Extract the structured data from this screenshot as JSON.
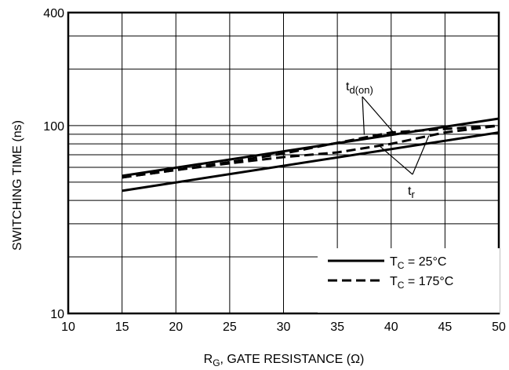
{
  "chart_data": {
    "type": "line",
    "xlabel_main": "R",
    "xlabel_sub": "G",
    "xlabel_rest": ", GATE RESISTANCE (Ω)",
    "ylabel": "SWITCHING TIME (ns)",
    "xlim": [
      10,
      50
    ],
    "ylim": [
      10,
      400
    ],
    "yscale": "log",
    "grid": true,
    "x_ticks": [
      10,
      15,
      20,
      25,
      30,
      35,
      40,
      45,
      50
    ],
    "y_tick_labels": [
      {
        "value": 10,
        "label": "10"
      },
      {
        "value": 100,
        "label": "100"
      },
      {
        "value": 400,
        "label": "400"
      }
    ],
    "y_gridlines": [
      10,
      20,
      30,
      40,
      50,
      60,
      70,
      80,
      90,
      100,
      200,
      300,
      400
    ],
    "series": [
      {
        "annotation": "td(on)",
        "style": "solid",
        "x": [
          15,
          50
        ],
        "y": [
          54,
          109
        ]
      },
      {
        "annotation": "td(on)",
        "style": "dashed",
        "x": [
          15,
          20,
          25,
          30,
          35,
          40,
          45,
          50
        ],
        "y": [
          53,
          58,
          64,
          71,
          81,
          92,
          96,
          100
        ]
      },
      {
        "annotation": "tr",
        "style": "solid",
        "x": [
          15,
          50
        ],
        "y": [
          45,
          92
        ]
      },
      {
        "annotation": "tr",
        "style": "dashed",
        "x": [
          15,
          20,
          25,
          30,
          35,
          40,
          45,
          50
        ],
        "y": [
          53,
          58,
          63,
          68,
          72,
          80,
          92,
          100
        ]
      }
    ],
    "annotations": [
      {
        "main": "t",
        "sub": "d(on)"
      },
      {
        "main": "t",
        "sub": "r"
      }
    ],
    "legend": {
      "position": "bottom-right",
      "entries": [
        {
          "style": "solid",
          "label_main": "T",
          "label_sub": "C",
          "label_rest": " = 25°C"
        },
        {
          "style": "dashed",
          "label_main": "T",
          "label_sub": "C",
          "label_rest": " = 175°C"
        }
      ]
    }
  }
}
